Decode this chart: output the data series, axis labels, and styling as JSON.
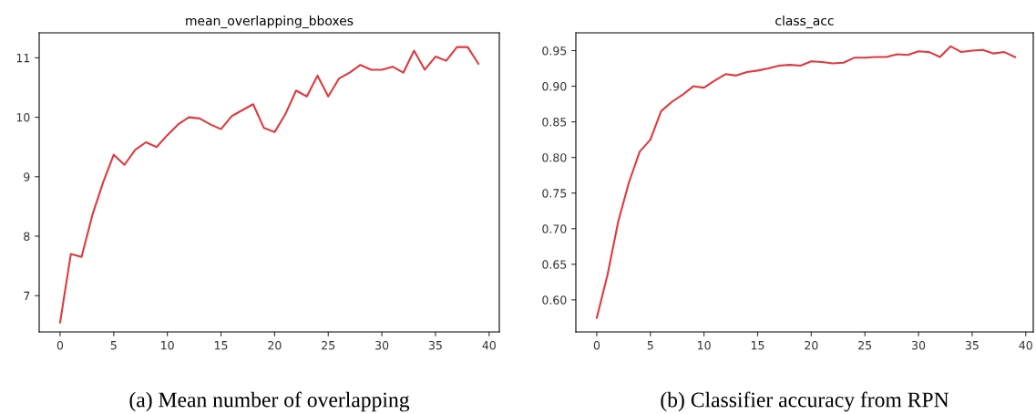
{
  "chart_data": [
    {
      "type": "line",
      "title": "mean_overlapping_bboxes",
      "x": [
        0,
        1,
        2,
        3,
        4,
        5,
        6,
        7,
        8,
        9,
        10,
        11,
        12,
        13,
        14,
        15,
        16,
        17,
        18,
        19,
        20,
        21,
        22,
        23,
        24,
        25,
        26,
        27,
        28,
        29,
        30,
        31,
        32,
        33,
        34,
        35,
        36,
        37,
        38,
        39
      ],
      "series": [
        {
          "color": "#e0393e",
          "values": [
            6.55,
            7.7,
            7.65,
            8.35,
            8.9,
            9.37,
            9.2,
            9.45,
            9.58,
            9.5,
            9.7,
            9.88,
            10.0,
            9.98,
            9.88,
            9.8,
            10.02,
            10.12,
            10.22,
            9.82,
            9.75,
            10.05,
            10.45,
            10.35,
            10.7,
            10.35,
            10.65,
            10.75,
            10.88,
            10.8,
            10.8,
            10.85,
            10.75,
            11.12,
            10.8,
            11.02,
            10.95,
            11.18,
            11.18,
            10.9
          ]
        }
      ],
      "xlim": [
        -1.95,
        40.95
      ],
      "xticks": [
        0,
        5,
        10,
        15,
        20,
        25,
        30,
        35,
        40
      ],
      "ylim": [
        6.39,
        11.42
      ],
      "yticks": [
        7,
        8,
        9,
        10,
        11
      ],
      "grid": false,
      "annotations": [
        "(a) Mean number of overlapping"
      ]
    },
    {
      "type": "line",
      "title": "class_acc",
      "x": [
        0,
        1,
        2,
        3,
        4,
        5,
        6,
        7,
        8,
        9,
        10,
        11,
        12,
        13,
        14,
        15,
        16,
        17,
        18,
        19,
        20,
        21,
        22,
        23,
        24,
        25,
        26,
        27,
        28,
        29,
        30,
        31,
        32,
        33,
        34,
        35,
        36,
        37,
        38,
        39
      ],
      "series": [
        {
          "color": "#e0393e",
          "values": [
            0.575,
            0.635,
            0.71,
            0.765,
            0.808,
            0.825,
            0.865,
            0.878,
            0.888,
            0.9,
            0.898,
            0.908,
            0.917,
            0.915,
            0.92,
            0.922,
            0.925,
            0.929,
            0.93,
            0.929,
            0.935,
            0.934,
            0.932,
            0.933,
            0.94,
            0.94,
            0.941,
            0.941,
            0.945,
            0.944,
            0.949,
            0.948,
            0.941,
            0.956,
            0.948,
            0.95,
            0.951,
            0.946,
            0.948,
            0.941
          ]
        }
      ],
      "xlim": [
        -1.95,
        40.7
      ],
      "xticks": [
        0,
        5,
        10,
        15,
        20,
        25,
        30,
        35,
        40
      ],
      "ylim": [
        0.555,
        0.975
      ],
      "yticks": [
        {
          "value": 0.6,
          "label": "0.60"
        },
        {
          "value": 0.65,
          "label": "0.65"
        },
        {
          "value": 0.7,
          "label": "0.70"
        },
        {
          "value": 0.75,
          "label": "0.75"
        },
        {
          "value": 0.8,
          "label": "0.80"
        },
        {
          "value": 0.85,
          "label": "0.85"
        },
        {
          "value": 0.9,
          "label": "0.90"
        },
        {
          "value": 0.95,
          "label": "0.95"
        }
      ],
      "grid": false,
      "annotations": [
        "(b) Classifier accuracy from RPN"
      ]
    }
  ]
}
